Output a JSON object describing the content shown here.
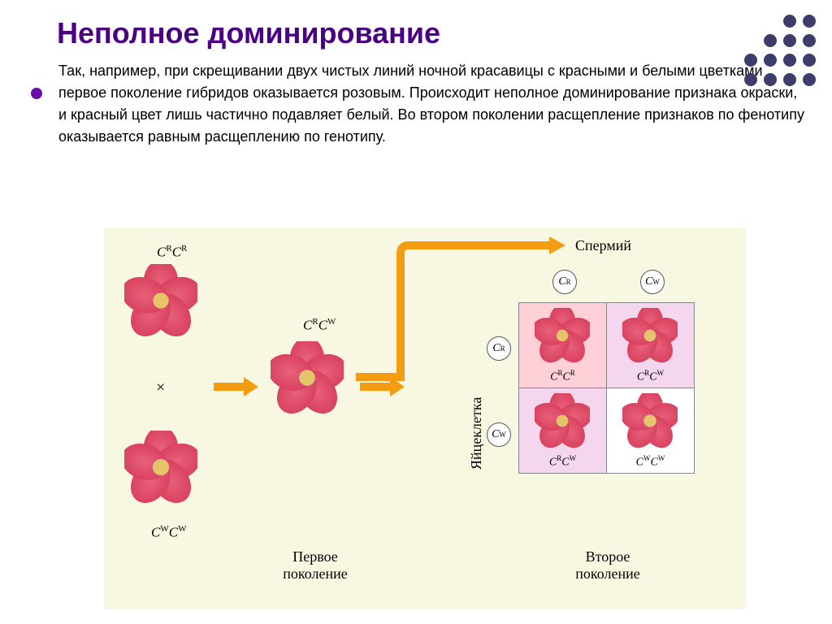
{
  "title": "Неполное доминирование",
  "description": "Так, например, при скрещивании двух чистых линий ночной красавицы с красными и белыми цветками первое поколение гибридов оказывается розовым. Происходит неполное доминирование признака окраски, и красный цвет лишь частично подавляет белый. Во втором поколении расщепление признаков по фенотипу оказывается равным расщеплению по генотипу.",
  "colors": {
    "title": "#4b0082",
    "bullet": "#6a0dad",
    "diagram_bg": "#f8f8e2",
    "arrow": "#f39c12",
    "flower_red": "#e8617a",
    "flower_red_dark": "#d9425f",
    "flower_pink": "#e084c2",
    "flower_pink_dark": "#c968a9",
    "flower_white": "#f0e0e8",
    "flower_white_dark": "#ddc9d3",
    "flower_center": "#e6c56a",
    "punnett_red_bg": "#ffd0d8",
    "punnett_pink_bg": "#f4d6ee",
    "punnett_white_bg": "#ffffff",
    "dot": "#3d3d6b"
  },
  "parents": {
    "red_geno_html": "C<sup>R</sup>C<sup>R</sup>",
    "white_geno_html": "C<sup>W</sup>C<sup>W</sup>",
    "cross": "×"
  },
  "f1": {
    "geno_html": "C<sup>R</sup>C<sup>W</sup>",
    "label": "Первое\nпоколение"
  },
  "f2": {
    "label": "Второе\nпоколение",
    "sperm_label": "Спермий",
    "egg_label": "Яйцеклетка",
    "gametes": {
      "cr_html": "C<sup>R</sup>",
      "cw_html": "C<sup>W</sup>"
    },
    "cells": [
      {
        "bg": "#ffd0d8",
        "color": "red",
        "geno_html": "C<sup>R</sup>C<sup>R</sup>"
      },
      {
        "bg": "#f4d6ee",
        "color": "pink",
        "geno_html": "C<sup>R</sup>C<sup>W</sup>"
      },
      {
        "bg": "#f4d6ee",
        "color": "pink",
        "geno_html": "C<sup>R</sup>C<sup>W</sup>"
      },
      {
        "bg": "#ffffff",
        "color": "white",
        "geno_html": "C<sup>W</sup>C<sup>W</sup>"
      }
    ]
  },
  "dot_grid": [
    [
      0,
      0,
      1,
      1
    ],
    [
      0,
      1,
      1,
      1
    ],
    [
      1,
      1,
      1,
      1
    ],
    [
      1,
      1,
      1,
      1
    ]
  ]
}
